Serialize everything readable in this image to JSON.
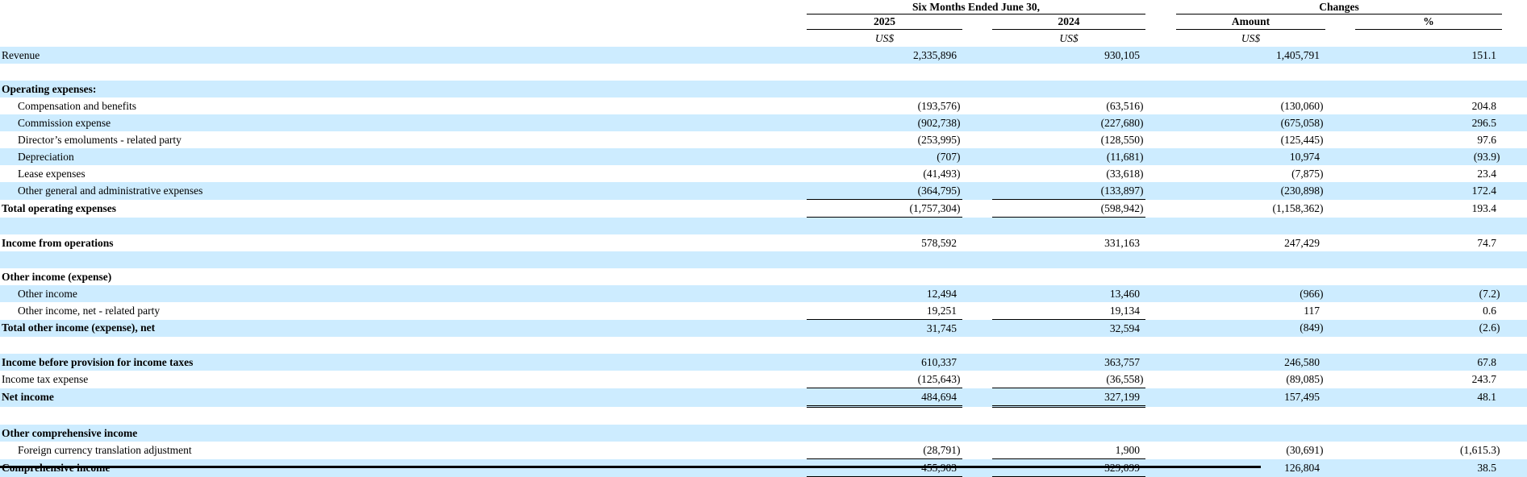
{
  "styles": {
    "stripe_color": "#CDECFF",
    "rule_color": "#000000"
  },
  "table": {
    "groups": [
      {
        "label": "Six Months Ended June 30,"
      },
      {
        "label": "Changes"
      }
    ],
    "columns": [
      {
        "label": "2025",
        "unit": "US$"
      },
      {
        "label": "2024",
        "unit": "US$"
      },
      {
        "label": "Amount",
        "unit": "US$"
      },
      {
        "label": "%",
        "unit": ""
      }
    ],
    "rows": [
      {
        "label": "Revenue",
        "indent": 0,
        "bold": false,
        "shaded": true,
        "values": [
          "2,335,896",
          "930,105",
          "1,405,791",
          "151.1"
        ]
      },
      {
        "label": "",
        "blank": true,
        "shaded": false,
        "values": [
          "",
          "",
          "",
          ""
        ]
      },
      {
        "label": "Operating expenses:",
        "indent": 0,
        "bold": true,
        "shaded": true,
        "values": [
          "",
          "",
          "",
          ""
        ]
      },
      {
        "label": "Compensation and benefits",
        "indent": 1,
        "bold": false,
        "shaded": false,
        "values": [
          "(193,576)",
          "(63,516)",
          "(130,060)",
          "204.8"
        ]
      },
      {
        "label": "Commission expense",
        "indent": 1,
        "bold": false,
        "shaded": true,
        "values": [
          "(902,738)",
          "(227,680)",
          "(675,058)",
          "296.5"
        ]
      },
      {
        "label": "Director’s emoluments - related party",
        "indent": 1,
        "bold": false,
        "shaded": false,
        "values": [
          "(253,995)",
          "(128,550)",
          "(125,445)",
          "97.6"
        ]
      },
      {
        "label": "Depreciation",
        "indent": 1,
        "bold": false,
        "shaded": true,
        "values": [
          "(707)",
          "(11,681)",
          "10,974",
          "(93.9)"
        ]
      },
      {
        "label": "Lease expenses",
        "indent": 1,
        "bold": false,
        "shaded": false,
        "values": [
          "(41,493)",
          "(33,618)",
          "(7,875)",
          "23.4"
        ]
      },
      {
        "label": "Other general and administrative expenses",
        "indent": 1,
        "bold": false,
        "shaded": true,
        "values": [
          "(364,795)",
          "(133,897)",
          "(230,898)",
          "172.4"
        ]
      },
      {
        "label": "Total operating expenses",
        "indent": 0,
        "bold": true,
        "shaded": false,
        "values": [
          "(1,757,304)",
          "(598,942)",
          "(1,158,362)",
          "193.4"
        ],
        "rules": {
          "top": [
            0,
            1
          ],
          "bottom": [
            0,
            1
          ]
        }
      },
      {
        "label": "",
        "blank": true,
        "shaded": true,
        "values": [
          "",
          "",
          "",
          ""
        ]
      },
      {
        "label": "Income from operations",
        "indent": 0,
        "bold": true,
        "shaded": false,
        "values": [
          "578,592",
          "331,163",
          "247,429",
          "74.7"
        ]
      },
      {
        "label": "",
        "blank": true,
        "shaded": true,
        "values": [
          "",
          "",
          "",
          ""
        ]
      },
      {
        "label": "Other income (expense)",
        "indent": 0,
        "bold": true,
        "shaded": false,
        "values": [
          "",
          "",
          "",
          ""
        ]
      },
      {
        "label": "Other income",
        "indent": 1,
        "bold": false,
        "shaded": true,
        "values": [
          "12,494",
          "13,460",
          "(966)",
          "(7.2)"
        ]
      },
      {
        "label": "Other income, net - related party",
        "indent": 1,
        "bold": false,
        "shaded": false,
        "values": [
          "19,251",
          "19,134",
          "117",
          "0.6"
        ]
      },
      {
        "label": "Total other income (expense), net",
        "indent": 0,
        "bold": true,
        "shaded": true,
        "values": [
          "31,745",
          "32,594",
          "(849)",
          "(2.6)"
        ],
        "rules": {
          "top": [
            0,
            1
          ]
        }
      },
      {
        "label": "",
        "blank": true,
        "shaded": false,
        "values": [
          "",
          "",
          "",
          ""
        ]
      },
      {
        "label": "Income before provision for income taxes",
        "indent": 0,
        "bold": true,
        "shaded": true,
        "values": [
          "610,337",
          "363,757",
          "246,580",
          "67.8"
        ]
      },
      {
        "label": "Income tax expense",
        "indent": 0,
        "bold": false,
        "shaded": false,
        "values": [
          "(125,643)",
          "(36,558)",
          "(89,085)",
          "243.7"
        ]
      },
      {
        "label": "Net income",
        "indent": 0,
        "bold": true,
        "shaded": true,
        "values": [
          "484,694",
          "327,199",
          "157,495",
          "48.1"
        ],
        "rules": {
          "top": [
            0,
            1
          ],
          "bottom_double": [
            0,
            1
          ]
        }
      },
      {
        "label": "",
        "blank": true,
        "shaded": false,
        "values": [
          "",
          "",
          "",
          ""
        ]
      },
      {
        "label": "Other comprehensive income",
        "indent": 0,
        "bold": true,
        "shaded": true,
        "values": [
          "",
          "",
          "",
          ""
        ]
      },
      {
        "label": "Foreign currency translation adjustment",
        "indent": 1,
        "bold": false,
        "shaded": false,
        "values": [
          "(28,791)",
          "1,900",
          "(30,691)",
          "(1,615.3)"
        ]
      },
      {
        "label": "Comprehensive income",
        "indent": 0,
        "bold": true,
        "shaded": true,
        "values": [
          "455,903",
          "329,099",
          "126,804",
          "38.5"
        ],
        "rules": {
          "top": [
            0,
            1
          ],
          "bottom": [
            0,
            1
          ]
        }
      }
    ]
  }
}
